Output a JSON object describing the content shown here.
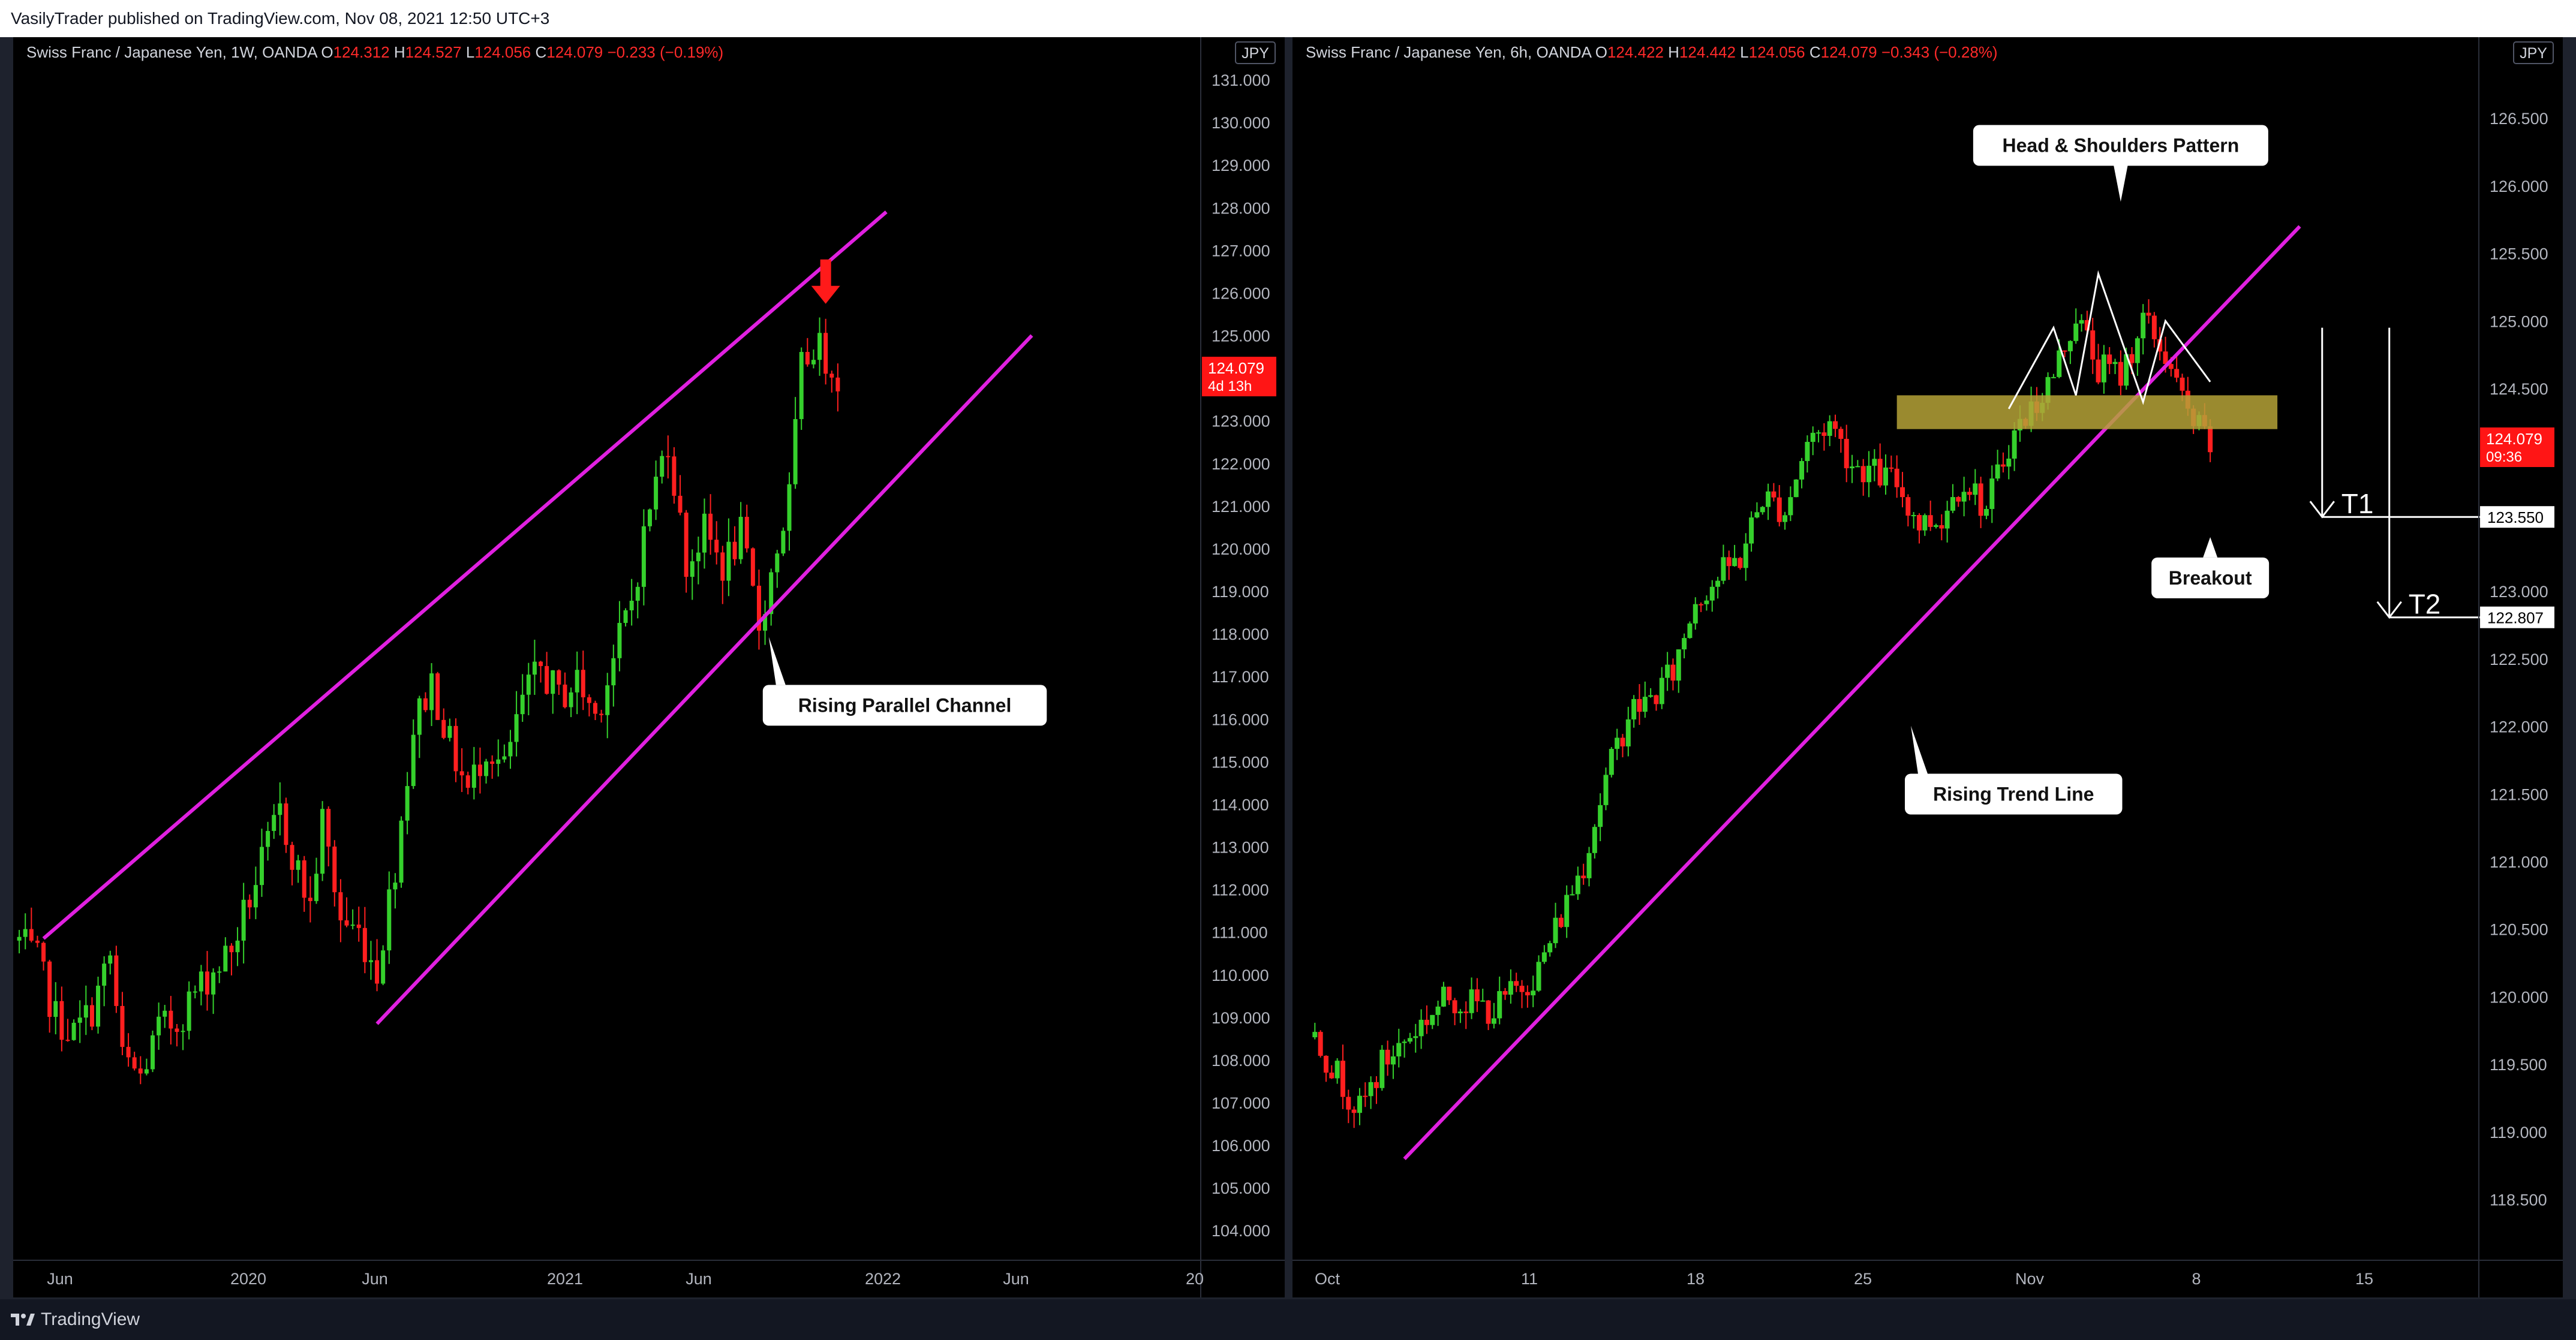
{
  "header": {
    "published_text": "VasilyTrader published on TradingView.com, Nov 08, 2021 12:50 UTC+3"
  },
  "footer": {
    "brand": "TradingView"
  },
  "colors": {
    "up": "#35d02c",
    "down": "#ff1f1f",
    "channel": "#e020e0",
    "zone": "#b5a237",
    "price_tag": "#ff1515"
  },
  "chart_data": [
    {
      "type": "candlestick",
      "legend": {
        "symbol": "Swiss Franc / Japanese Yen, 1W, OANDA",
        "o_label": "O",
        "o": "124.312",
        "h_label": "H",
        "h": "124.527",
        "l_label": "L",
        "l": "124.056",
        "c_label": "C",
        "c": "124.079",
        "change": "−0.233 (−0.19%)"
      },
      "currency": "JPY",
      "ylim": [
        103.3,
        132.0
      ],
      "y_ticks": [
        "131.000",
        "130.000",
        "129.000",
        "128.000",
        "127.000",
        "126.000",
        "125.000",
        "123.000",
        "122.000",
        "121.000",
        "120.000",
        "119.000",
        "118.000",
        "117.000",
        "116.000",
        "115.000",
        "114.000",
        "113.000",
        "112.000",
        "111.000",
        "110.000",
        "109.000",
        "108.000",
        "107.000",
        "106.000",
        "105.000",
        "104.000"
      ],
      "x_ticks": [
        "Jun",
        "2020",
        "Jun",
        "2021",
        "Jun",
        "2022",
        "Jun",
        "20"
      ],
      "x_range": [
        "2019-04-01",
        "2023-01-01"
      ],
      "last_price": {
        "value": "124.079",
        "sub": "4d 13h"
      },
      "close_path": [
        [
          "2019-04-08",
          110.8
        ],
        [
          "2019-04-29",
          110.3
        ],
        [
          "2019-05-20",
          109.0
        ],
        [
          "2019-06-10",
          108.6
        ],
        [
          "2019-07-01",
          109.2
        ],
        [
          "2019-07-22",
          110.4
        ],
        [
          "2019-08-05",
          108.0
        ],
        [
          "2019-08-26",
          107.6
        ],
        [
          "2019-09-16",
          108.7
        ],
        [
          "2019-10-07",
          108.9
        ],
        [
          "2019-10-28",
          109.6
        ],
        [
          "2019-11-18",
          110.1
        ],
        [
          "2019-12-09",
          110.6
        ],
        [
          "2019-12-30",
          111.8
        ],
        [
          "2020-01-13",
          112.6
        ],
        [
          "2020-02-03",
          113.8
        ],
        [
          "2020-02-24",
          112.4
        ],
        [
          "2020-03-09",
          111.6
        ],
        [
          "2020-03-23",
          113.6
        ],
        [
          "2020-04-13",
          111.3
        ],
        [
          "2020-05-04",
          111.0
        ],
        [
          "2020-05-25",
          110.1
        ],
        [
          "2020-06-15",
          112.6
        ],
        [
          "2020-07-06",
          115.8
        ],
        [
          "2020-07-27",
          116.9
        ],
        [
          "2020-08-17",
          115.4
        ],
        [
          "2020-09-07",
          114.3
        ],
        [
          "2020-09-28",
          115.4
        ],
        [
          "2020-10-19",
          114.8
        ],
        [
          "2020-11-09",
          116.4
        ],
        [
          "2020-11-30",
          117.2
        ],
        [
          "2020-12-21",
          116.5
        ],
        [
          "2021-01-11",
          116.9
        ],
        [
          "2021-02-01",
          116.1
        ],
        [
          "2021-02-22",
          117.4
        ],
        [
          "2021-03-15",
          118.8
        ],
        [
          "2021-04-05",
          121.0
        ],
        [
          "2021-04-26",
          122.6
        ],
        [
          "2021-05-17",
          119.6
        ],
        [
          "2021-06-07",
          120.4
        ],
        [
          "2021-06-28",
          119.6
        ],
        [
          "2021-07-19",
          120.3
        ],
        [
          "2021-08-09",
          118.2
        ],
        [
          "2021-08-30",
          120.0
        ],
        [
          "2021-09-13",
          121.2
        ],
        [
          "2021-09-27",
          124.2
        ],
        [
          "2021-10-11",
          124.8
        ],
        [
          "2021-10-25",
          124.5
        ],
        [
          "2021-11-08",
          124.08
        ]
      ],
      "lines": [
        {
          "name": "channel-top",
          "from": [
            "2019-05-06",
            110.85
          ],
          "to": [
            "2022-01-03",
            127.9
          ]
        },
        {
          "name": "channel-bottom",
          "from": [
            "2020-05-25",
            108.85
          ],
          "to": [
            "2022-06-20",
            125.0
          ]
        }
      ],
      "annotations": [
        {
          "text": "Rising Parallel Channel",
          "anchor": [
            "2021-08-30",
            116.8
          ]
        }
      ],
      "arrow": {
        "at": [
          "2021-10-25",
          125.8
        ]
      }
    },
    {
      "type": "candlestick",
      "legend": {
        "symbol": "Swiss Franc / Japanese Yen, 6h, OANDA",
        "o_label": "O",
        "o": "124.422",
        "h_label": "H",
        "h": "124.442",
        "l_label": "L",
        "l": "124.056",
        "c_label": "C",
        "c": "124.079",
        "change": "−0.343 (−0.28%)"
      },
      "currency": "JPY",
      "ylim": [
        118.05,
        127.1
      ],
      "y_ticks": [
        "126.500",
        "126.000",
        "125.500",
        "125.000",
        "124.500",
        "123.000",
        "122.500",
        "122.000",
        "121.500",
        "121.000",
        "120.500",
        "120.000",
        "119.500",
        "119.000",
        "118.500"
      ],
      "x_ticks": [
        "Oct",
        "11",
        "18",
        "25",
        "Nov",
        "8",
        "15"
      ],
      "x_range": [
        "2021-09-28",
        "2021-11-20"
      ],
      "last_price": {
        "value": "124.079",
        "sub": "09:36"
      },
      "target_tags": [
        "123.550",
        "122.807"
      ],
      "close_path": [
        [
          "2021-09-29",
          119.7
        ],
        [
          "2021-10-01",
          119.15
        ],
        [
          "2021-10-02",
          119.5
        ],
        [
          "2021-10-04",
          119.85
        ],
        [
          "2021-10-05",
          120.0
        ],
        [
          "2021-10-07",
          119.9
        ],
        [
          "2021-10-08",
          120.05
        ],
        [
          "2021-10-09",
          120.2
        ],
        [
          "2021-10-11",
          121.0
        ],
        [
          "2021-10-12",
          121.6
        ],
        [
          "2021-10-13",
          122.1
        ],
        [
          "2021-10-14",
          122.2
        ],
        [
          "2021-10-15",
          122.4
        ],
        [
          "2021-10-16",
          122.95
        ],
        [
          "2021-10-18",
          123.25
        ],
        [
          "2021-10-19",
          123.7
        ],
        [
          "2021-10-20",
          123.6
        ],
        [
          "2021-10-21",
          124.1
        ],
        [
          "2021-10-22",
          124.25
        ],
        [
          "2021-10-23",
          123.95
        ],
        [
          "2021-10-25",
          123.8
        ],
        [
          "2021-10-26",
          123.5
        ],
        [
          "2021-10-27",
          123.55
        ],
        [
          "2021-10-28",
          123.85
        ],
        [
          "2021-10-29",
          123.6
        ],
        [
          "2021-10-30",
          124.1
        ],
        [
          "2021-11-01",
          124.6
        ],
        [
          "2021-11-02",
          125.05
        ],
        [
          "2021-11-03",
          124.65
        ],
        [
          "2021-11-04",
          124.6
        ],
        [
          "2021-11-05",
          125.0
        ],
        [
          "2021-11-06",
          124.75
        ],
        [
          "2021-11-07",
          124.3
        ],
        [
          "2021-11-08",
          124.08
        ]
      ],
      "lines": [
        {
          "name": "trend-line",
          "from": [
            "2021-10-03",
            118.8
          ],
          "to": [
            "2021-11-12",
            125.7
          ]
        }
      ],
      "zone": {
        "from": "2021-10-25",
        "to": "2021-11-11",
        "y": [
          124.2,
          124.45
        ]
      },
      "pattern": [
        [
          "2021-10-30",
          124.35
        ],
        [
          "2021-11-01",
          124.95
        ],
        [
          "2021-11-02",
          124.45
        ],
        [
          "2021-11-03",
          125.35
        ],
        [
          "2021-11-05",
          124.4
        ],
        [
          "2021-11-06",
          125.0
        ],
        [
          "2021-11-08",
          124.55
        ]
      ],
      "target_arrows": [
        {
          "label": "T1",
          "x": "2021-11-13",
          "from": 124.95,
          "to": 123.55,
          "line_end": "2021-11-21"
        },
        {
          "label": "T2",
          "x": "2021-11-16",
          "from": 124.95,
          "to": 122.807,
          "line_end": "2021-11-21"
        }
      ],
      "annotations": [
        {
          "text": "Head & Shoulders Pattern",
          "anchor": [
            "2021-11-04",
            126.45
          ]
        },
        {
          "text": "Breakout",
          "anchor": [
            "2021-11-08",
            123.25
          ]
        },
        {
          "text": "Rising Trend Line",
          "anchor": [
            "2021-10-26",
            121.65
          ]
        }
      ]
    }
  ]
}
